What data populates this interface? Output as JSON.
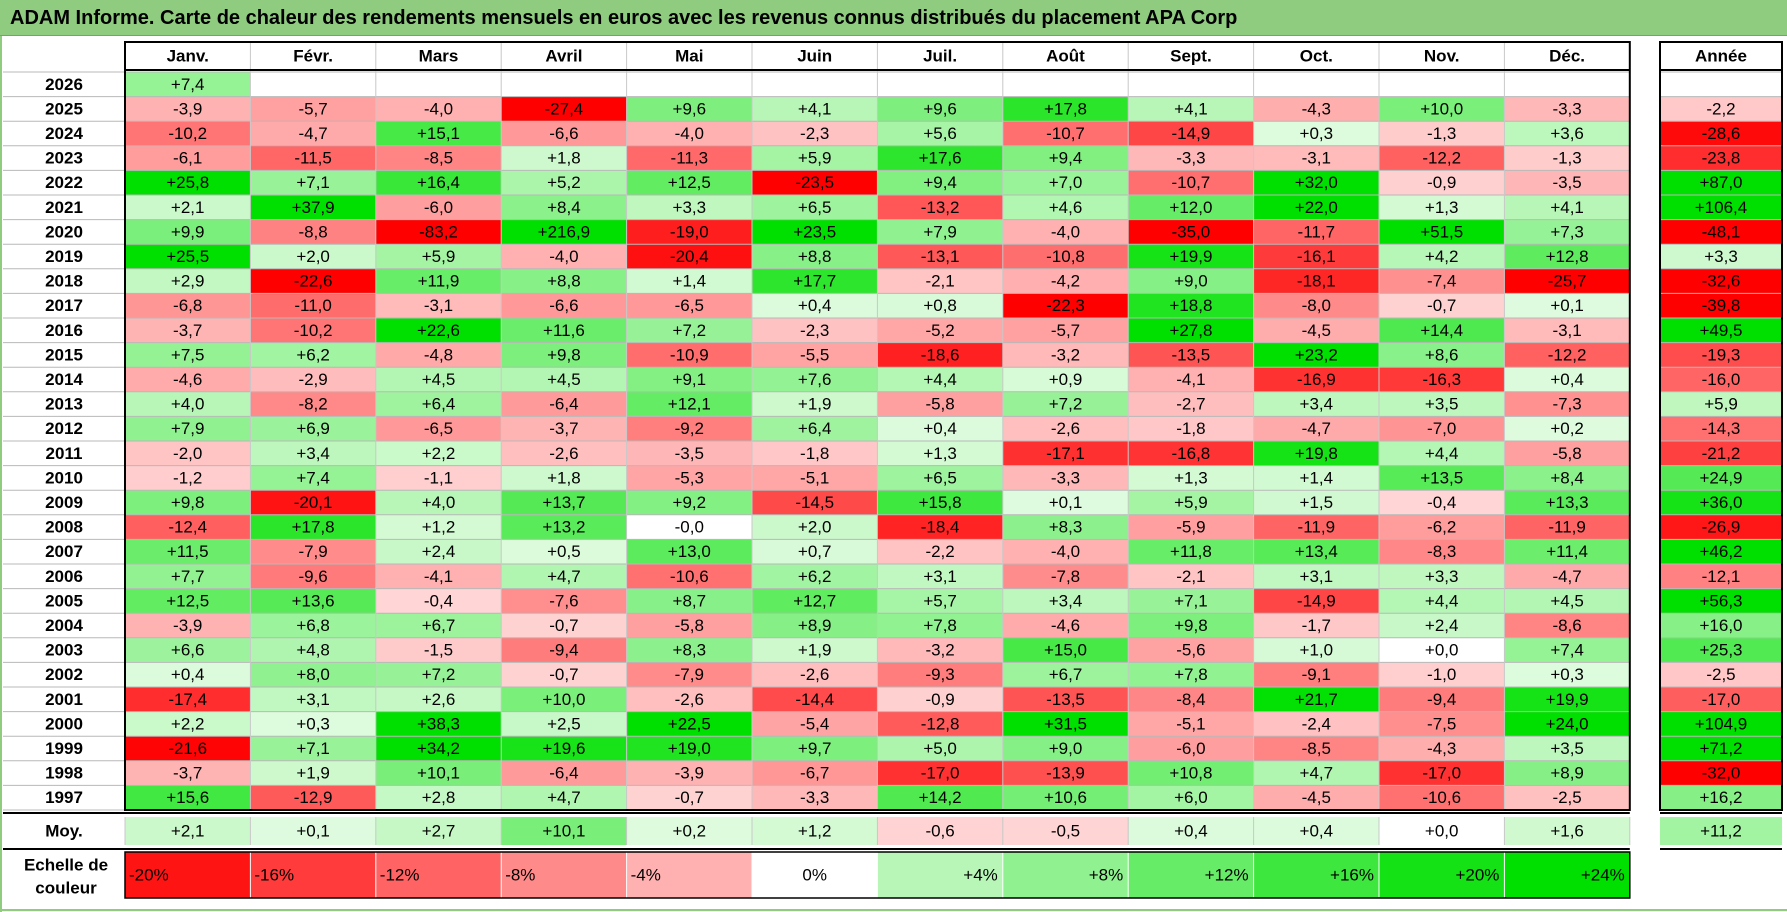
{
  "title": "ADAM Informe. Carte de chaleur des rendements mensuels en euros avec les revenus connus distribués du placement APA Corp",
  "colors": {
    "negative": "#ff0000",
    "neutral": "#ffffff",
    "positive": "#00e000",
    "title_bar": "#8fcc7f"
  },
  "chart_data": {
    "type": "heatmap",
    "title": "ADAM Informe. Carte de chaleur des rendements mensuels en euros avec les revenus connus distribués du placement APA Corp",
    "months": [
      "Janv.",
      "Févr.",
      "Mars",
      "Avril",
      "Mai",
      "Juin",
      "Juil.",
      "Août",
      "Sept.",
      "Oct.",
      "Nov.",
      "Déc."
    ],
    "year_header": "Année",
    "rows": [
      {
        "year": "2026",
        "values": [
          "+7,4",
          "",
          "",
          "",
          "",
          "",
          "",
          "",
          "",
          "",
          "",
          ""
        ],
        "annual": ""
      },
      {
        "year": "2025",
        "values": [
          "-3,9",
          "-5,7",
          "-4,0",
          "-27,4",
          "+9,6",
          "+4,1",
          "+9,6",
          "+17,8",
          "+4,1",
          "-4,3",
          "+10,0",
          "-3,3"
        ],
        "annual": "-2,2"
      },
      {
        "year": "2024",
        "values": [
          "-10,2",
          "-4,7",
          "+15,1",
          "-6,6",
          "-4,0",
          "-2,3",
          "+5,6",
          "-10,7",
          "-14,9",
          "+0,3",
          "-1,3",
          "+3,6"
        ],
        "annual": "-28,6"
      },
      {
        "year": "2023",
        "values": [
          "-6,1",
          "-11,5",
          "-8,5",
          "+1,8",
          "-11,3",
          "+5,9",
          "+17,6",
          "+9,4",
          "-3,3",
          "-3,1",
          "-12,2",
          "-1,3"
        ],
        "annual": "-23,8"
      },
      {
        "year": "2022",
        "values": [
          "+25,8",
          "+7,1",
          "+16,4",
          "+5,2",
          "+12,5",
          "-23,5",
          "+9,4",
          "+7,0",
          "-10,7",
          "+32,0",
          "-0,9",
          "-3,5"
        ],
        "annual": "+87,0"
      },
      {
        "year": "2021",
        "values": [
          "+2,1",
          "+37,9",
          "-6,0",
          "+8,4",
          "+3,3",
          "+6,5",
          "-13,2",
          "+4,6",
          "+12,0",
          "+22,0",
          "+1,3",
          "+4,1"
        ],
        "annual": "+106,4"
      },
      {
        "year": "2020",
        "values": [
          "+9,9",
          "-8,8",
          "-83,2",
          "+216,9",
          "-19,0",
          "+23,5",
          "+7,9",
          "-4,0",
          "-35,0",
          "-11,7",
          "+51,5",
          "+7,3"
        ],
        "annual": "-48,1"
      },
      {
        "year": "2019",
        "values": [
          "+25,5",
          "+2,0",
          "+5,9",
          "-4,0",
          "-20,4",
          "+8,8",
          "-13,1",
          "-10,8",
          "+19,9",
          "-16,1",
          "+4,2",
          "+12,8"
        ],
        "annual": "+3,3"
      },
      {
        "year": "2018",
        "values": [
          "+2,9",
          "-22,6",
          "+11,9",
          "+8,8",
          "+1,4",
          "+17,7",
          "-2,1",
          "-4,2",
          "+9,0",
          "-18,1",
          "-7,4",
          "-25,7"
        ],
        "annual": "-32,6"
      },
      {
        "year": "2017",
        "values": [
          "-6,8",
          "-11,0",
          "-3,1",
          "-6,6",
          "-6,5",
          "+0,4",
          "+0,8",
          "-22,3",
          "+18,8",
          "-8,0",
          "-0,7",
          "+0,1"
        ],
        "annual": "-39,8"
      },
      {
        "year": "2016",
        "values": [
          "-3,7",
          "-10,2",
          "+22,6",
          "+11,6",
          "+7,2",
          "-2,3",
          "-5,2",
          "-5,7",
          "+27,8",
          "-4,5",
          "+14,4",
          "-3,1"
        ],
        "annual": "+49,5"
      },
      {
        "year": "2015",
        "values": [
          "+7,5",
          "+6,2",
          "-4,8",
          "+9,8",
          "-10,9",
          "-5,5",
          "-18,6",
          "-3,2",
          "-13,5",
          "+23,2",
          "+8,6",
          "-12,2"
        ],
        "annual": "-19,3"
      },
      {
        "year": "2014",
        "values": [
          "-4,6",
          "-2,9",
          "+4,5",
          "+4,5",
          "+9,1",
          "+7,6",
          "+4,4",
          "+0,9",
          "-4,1",
          "-16,9",
          "-16,3",
          "+0,4"
        ],
        "annual": "-16,0"
      },
      {
        "year": "2013",
        "values": [
          "+4,0",
          "-8,2",
          "+6,4",
          "-6,4",
          "+12,1",
          "+1,9",
          "-5,8",
          "+7,2",
          "-2,7",
          "+3,4",
          "+3,5",
          "-7,3"
        ],
        "annual": "+5,9"
      },
      {
        "year": "2012",
        "values": [
          "+7,9",
          "+6,9",
          "-6,5",
          "-3,7",
          "-9,2",
          "+6,4",
          "+0,4",
          "-2,6",
          "-1,8",
          "-4,7",
          "-7,0",
          "+0,2"
        ],
        "annual": "-14,3"
      },
      {
        "year": "2011",
        "values": [
          "-2,0",
          "+3,4",
          "+2,2",
          "-2,6",
          "-3,5",
          "-1,8",
          "+1,3",
          "-17,1",
          "-16,8",
          "+19,8",
          "+4,4",
          "-5,8"
        ],
        "annual": "-21,2"
      },
      {
        "year": "2010",
        "values": [
          "-1,2",
          "+7,4",
          "-1,1",
          "+1,8",
          "-5,3",
          "-5,1",
          "+6,5",
          "-3,3",
          "+1,3",
          "+1,4",
          "+13,5",
          "+8,4"
        ],
        "annual": "+24,9"
      },
      {
        "year": "2009",
        "values": [
          "+9,8",
          "-20,1",
          "+4,0",
          "+13,7",
          "+9,2",
          "-14,5",
          "+15,8",
          "+0,1",
          "+5,9",
          "+1,5",
          "-0,4",
          "+13,3"
        ],
        "annual": "+36,0"
      },
      {
        "year": "2008",
        "values": [
          "-12,4",
          "+17,8",
          "+1,2",
          "+13,2",
          "-0,0",
          "+2,0",
          "-18,4",
          "+8,3",
          "-5,9",
          "-11,9",
          "-6,2",
          "-11,9"
        ],
        "annual": "-26,9"
      },
      {
        "year": "2007",
        "values": [
          "+11,5",
          "-7,9",
          "+2,4",
          "+0,5",
          "+13,0",
          "+0,7",
          "-2,2",
          "-4,0",
          "+11,8",
          "+13,4",
          "-8,3",
          "+11,4"
        ],
        "annual": "+46,2"
      },
      {
        "year": "2006",
        "values": [
          "+7,7",
          "-9,6",
          "-4,1",
          "+4,7",
          "-10,6",
          "+6,2",
          "+3,1",
          "-7,8",
          "-2,1",
          "+3,1",
          "+3,3",
          "-4,7"
        ],
        "annual": "-12,1"
      },
      {
        "year": "2005",
        "values": [
          "+12,5",
          "+13,6",
          "-0,4",
          "-7,6",
          "+8,7",
          "+12,7",
          "+5,7",
          "+3,4",
          "+7,1",
          "-14,9",
          "+4,4",
          "+4,5"
        ],
        "annual": "+56,3"
      },
      {
        "year": "2004",
        "values": [
          "-3,9",
          "+6,8",
          "+6,7",
          "-0,7",
          "-5,8",
          "+8,9",
          "+7,8",
          "-4,6",
          "+9,8",
          "-1,7",
          "+2,4",
          "-8,6"
        ],
        "annual": "+16,0"
      },
      {
        "year": "2003",
        "values": [
          "+6,6",
          "+4,8",
          "-1,5",
          "-9,4",
          "+8,3",
          "+1,9",
          "-3,2",
          "+15,0",
          "-5,6",
          "+1,0",
          "+0,0",
          "+7,4"
        ],
        "annual": "+25,3"
      },
      {
        "year": "2002",
        "values": [
          "+0,4",
          "+8,0",
          "+7,2",
          "-0,7",
          "-7,9",
          "-2,6",
          "-9,3",
          "+6,7",
          "+7,8",
          "-9,1",
          "-1,0",
          "+0,3"
        ],
        "annual": "-2,5"
      },
      {
        "year": "2001",
        "values": [
          "-17,4",
          "+3,1",
          "+2,6",
          "+10,0",
          "-2,6",
          "-14,4",
          "-0,9",
          "-13,5",
          "-8,4",
          "+21,7",
          "-9,4",
          "+19,9"
        ],
        "annual": "-17,0"
      },
      {
        "year": "2000",
        "values": [
          "+2,2",
          "+0,3",
          "+38,3",
          "+2,5",
          "+22,5",
          "-5,4",
          "-12,8",
          "+31,5",
          "-5,1",
          "-2,4",
          "-7,5",
          "+24,0"
        ],
        "annual": "+104,9"
      },
      {
        "year": "1999",
        "values": [
          "-21,6",
          "+7,1",
          "+34,2",
          "+19,6",
          "+19,0",
          "+9,7",
          "+5,0",
          "+9,0",
          "-6,0",
          "-8,5",
          "-4,3",
          "+3,5"
        ],
        "annual": "+71,2"
      },
      {
        "year": "1998",
        "values": [
          "-3,7",
          "+1,9",
          "+10,1",
          "-6,4",
          "-3,9",
          "-6,7",
          "-17,0",
          "-13,9",
          "+10,8",
          "+4,7",
          "-17,0",
          "+8,9"
        ],
        "annual": "-32,0"
      },
      {
        "year": "1997",
        "values": [
          "+15,6",
          "-12,9",
          "+2,8",
          "+4,7",
          "-0,7",
          "-3,3",
          "+14,2",
          "+10,6",
          "+6,0",
          "-4,5",
          "-10,6",
          "-2,5"
        ],
        "annual": "+16,2"
      }
    ],
    "average_label": "Moy.",
    "averages": [
      "+2,1",
      "+0,1",
      "+2,7",
      "+10,1",
      "+0,2",
      "+1,2",
      "-0,6",
      "-0,5",
      "+0,4",
      "+0,4",
      "+0,0",
      "+1,6"
    ],
    "average_annual": "+11,2",
    "legend": {
      "label_line1": "Echelle de",
      "label_line2": "couleur",
      "steps": [
        {
          "label": "-20%",
          "value": -20
        },
        {
          "label": "-16%",
          "value": -16
        },
        {
          "label": "-12%",
          "value": -12
        },
        {
          "label": "-8%",
          "value": -8
        },
        {
          "label": "-4%",
          "value": -4
        },
        {
          "label": "0%",
          "value": 0
        },
        {
          "label": "+4%",
          "value": 4
        },
        {
          "label": "+8%",
          "value": 8
        },
        {
          "label": "+12%",
          "value": 12
        },
        {
          "label": "+16%",
          "value": 16
        },
        {
          "label": "+20%",
          "value": 20
        },
        {
          "label": "+24%",
          "value": 24
        }
      ]
    }
  }
}
